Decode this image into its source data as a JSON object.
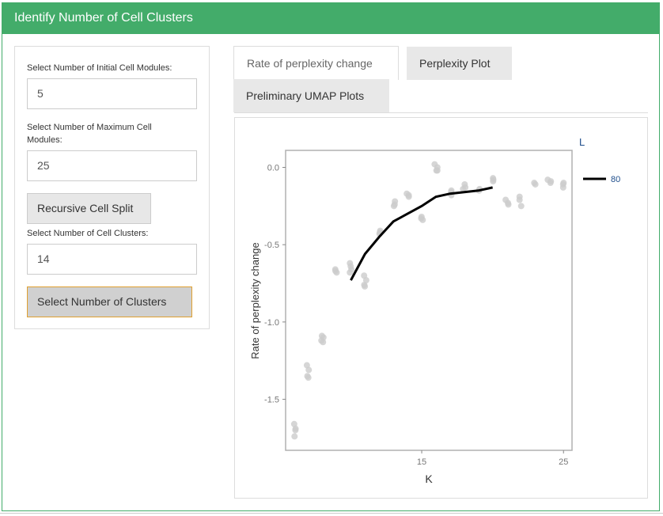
{
  "header": {
    "title": "Identify Number of Cell Clusters"
  },
  "sidebar": {
    "initial_label": "Select Number of Initial Cell Modules:",
    "initial_value": "5",
    "max_label": "Select Number of Maximum Cell Modules:",
    "max_value": "25",
    "split_button": "Recursive Cell Split",
    "clusters_label": "Select Number of Cell Clusters:",
    "clusters_value": "14",
    "select_button": "Select Number of Clusters"
  },
  "tabs": [
    {
      "label": "Rate of perplexity change",
      "active": true
    },
    {
      "label": "Perplexity Plot",
      "active": false
    },
    {
      "label": "Preliminary UMAP Plots",
      "active": false
    }
  ],
  "chart_data": {
    "type": "scatter",
    "xlabel": "K",
    "ylabel": "Rate of perplexity change",
    "xlim": [
      5.4,
      25.6
    ],
    "ylim": [
      -1.83,
      0.11
    ],
    "xticks": [
      15,
      25
    ],
    "yticks": [
      0.0,
      -0.5,
      -1.0,
      -1.5
    ],
    "ytick_labels": [
      "0.0",
      "-0.5",
      "-1.0",
      "-1.5"
    ],
    "xtick_labels": [
      "15",
      "25"
    ],
    "grid": false,
    "legend": {
      "title": "L",
      "entries": [
        "80"
      ],
      "placement": "right"
    },
    "point_color": "#cccccc",
    "line_color": "#000000",
    "points": [
      [
        6,
        -1.66
      ],
      [
        6,
        -1.69
      ],
      [
        6,
        -1.7
      ],
      [
        6,
        -1.74
      ],
      [
        7,
        -1.28
      ],
      [
        7,
        -1.31
      ],
      [
        7,
        -1.35
      ],
      [
        7,
        -1.36
      ],
      [
        8,
        -1.09
      ],
      [
        8,
        -1.1
      ],
      [
        8,
        -1.12
      ],
      [
        8,
        -1.13
      ],
      [
        9,
        -0.66
      ],
      [
        9,
        -0.67
      ],
      [
        9,
        -0.68
      ],
      [
        10,
        -0.62
      ],
      [
        10,
        -0.64
      ],
      [
        10,
        -0.66
      ],
      [
        10,
        -0.68
      ],
      [
        11,
        -0.7
      ],
      [
        11,
        -0.73
      ],
      [
        11,
        -0.76
      ],
      [
        11,
        -0.77
      ],
      [
        12,
        -0.41
      ],
      [
        12,
        -0.42
      ],
      [
        12,
        -0.43
      ],
      [
        13,
        -0.22
      ],
      [
        13,
        -0.24
      ],
      [
        13,
        -0.25
      ],
      [
        14,
        -0.17
      ],
      [
        14,
        -0.18
      ],
      [
        14,
        -0.19
      ],
      [
        15,
        -0.32
      ],
      [
        15,
        -0.33
      ],
      [
        15,
        -0.34
      ],
      [
        16,
        0.02
      ],
      [
        16,
        0.0
      ],
      [
        16,
        -0.02
      ],
      [
        16,
        -0.02
      ],
      [
        17,
        -0.15
      ],
      [
        17,
        -0.16
      ],
      [
        17,
        -0.18
      ],
      [
        18,
        -0.11
      ],
      [
        18,
        -0.13
      ],
      [
        18,
        -0.14
      ],
      [
        19,
        -0.14
      ],
      [
        19,
        -0.15
      ],
      [
        20,
        -0.07
      ],
      [
        20,
        -0.08
      ],
      [
        20,
        -0.09
      ],
      [
        21,
        -0.21
      ],
      [
        21,
        -0.23
      ],
      [
        21,
        -0.24
      ],
      [
        22,
        -0.19
      ],
      [
        22,
        -0.21
      ],
      [
        22,
        -0.25
      ],
      [
        23,
        -0.1
      ],
      [
        23,
        -0.11
      ],
      [
        24,
        -0.08
      ],
      [
        24,
        -0.09
      ],
      [
        24,
        -0.1
      ],
      [
        25,
        -0.1
      ],
      [
        25,
        -0.11
      ],
      [
        25,
        -0.13
      ]
    ],
    "series": [
      {
        "name": "80",
        "x": [
          10,
          11,
          12,
          13,
          14,
          15,
          16,
          17,
          18,
          19,
          20
        ],
        "y": [
          -0.73,
          -0.56,
          -0.45,
          -0.35,
          -0.3,
          -0.25,
          -0.19,
          -0.17,
          -0.16,
          -0.15,
          -0.13
        ]
      }
    ]
  }
}
